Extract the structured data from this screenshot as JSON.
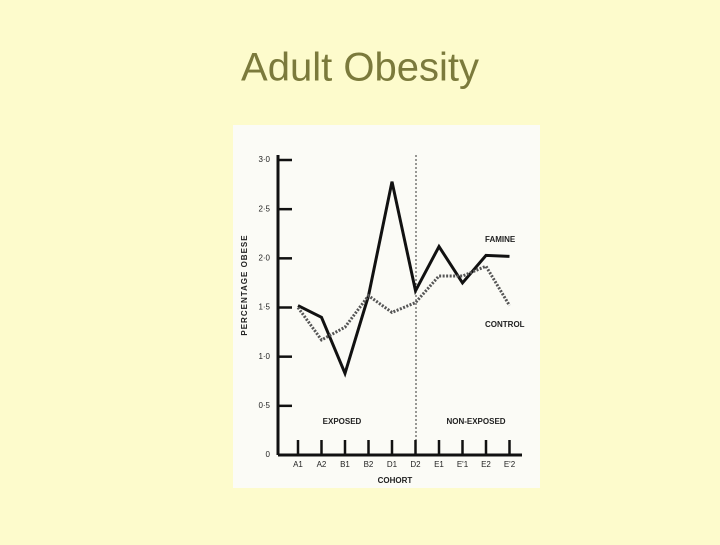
{
  "chart_data": {
    "type": "line",
    "title": "Adult Obesity",
    "x_label": "COHORT",
    "y_label": "PERCENTAGE OBESE",
    "categories": [
      "A1",
      "A2",
      "B1",
      "B2",
      "D1",
      "D2",
      "E1",
      "E'1",
      "E2",
      "E'2"
    ],
    "series": [
      {
        "name": "FAMINE",
        "color": "#111111",
        "line_style": "solid",
        "values": [
          1.52,
          1.4,
          0.83,
          1.62,
          2.78,
          1.67,
          2.12,
          1.75,
          2.03,
          2.02
        ]
      },
      {
        "name": "CONTROL",
        "color": "#555555",
        "line_style": "dotted",
        "values": [
          1.5,
          1.17,
          1.3,
          1.62,
          1.45,
          1.55,
          1.82,
          1.82,
          1.92,
          1.52
        ]
      }
    ],
    "annotations": [
      "EXPOSED",
      "NON-EXPOSED"
    ],
    "ylim": [
      0,
      3
    ],
    "yticks": [
      0,
      {
        "value": 0.5,
        "label": "0·5"
      },
      {
        "value": 1,
        "label": "1·0"
      },
      {
        "value": 1.5,
        "label": "1·5"
      },
      {
        "value": 2,
        "label": "2·0"
      },
      {
        "value": 2.5,
        "label": "2·5"
      },
      {
        "value": 3,
        "label": "3·0"
      }
    ],
    "grid": false
  }
}
